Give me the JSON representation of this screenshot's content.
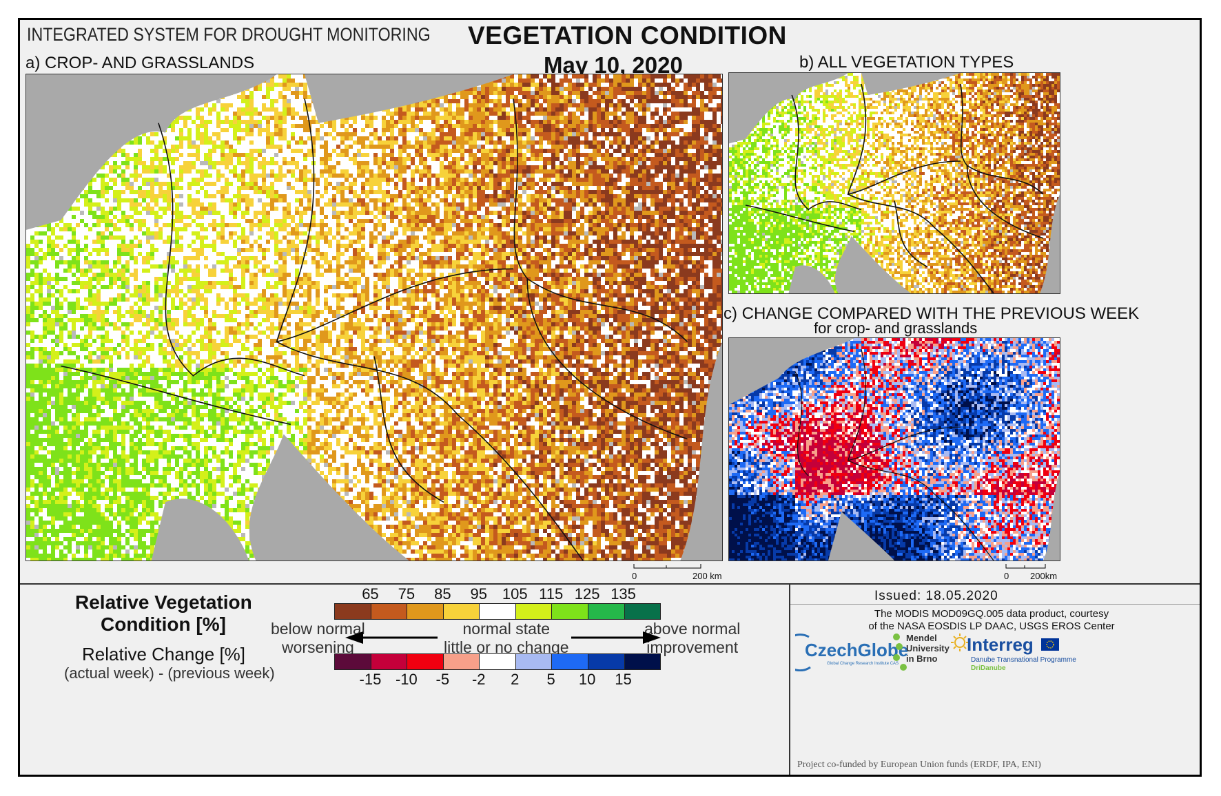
{
  "header": {
    "system": "INTEGRATED SYSTEM FOR DROUGHT MONITORING",
    "title": "VEGETATION CONDITION",
    "date": "May 10, 2020"
  },
  "panels": {
    "a": {
      "label": "a) CROP- AND GRASSLANDS",
      "scale": [
        "0",
        "200 km"
      ]
    },
    "b": {
      "label": "b) ALL VEGETATION TYPES"
    },
    "c": {
      "label": "c) CHANGE COMPARED WITH THE PREVIOUS WEEK",
      "sublabel": "for crop- and grasslands",
      "scale": [
        "0",
        "200km"
      ]
    }
  },
  "legend": {
    "title_line1": "Relative Vegetation",
    "title_line2": "Condition [%]",
    "change_title": "Relative Change [%]",
    "change_sub": "(actual week) - (previous week)",
    "condition_ticks": [
      "65",
      "75",
      "85",
      "95",
      "105",
      "115",
      "125",
      "135"
    ],
    "condition_colors": [
      "#8b3a1e",
      "#c45a1e",
      "#e0981c",
      "#f7d23a",
      "#ffffff",
      "#d4f01a",
      "#7ee21a",
      "#25b84a",
      "#08714a"
    ],
    "change_ticks": [
      "-15",
      "-10",
      "-5",
      "-2",
      "2",
      "5",
      "10",
      "15"
    ],
    "change_colors": [
      "#5c0a3a",
      "#c4003a",
      "#f00010",
      "#f7a08a",
      "#ffffff",
      "#a8baf2",
      "#1e6af5",
      "#073aa8",
      "#00104a"
    ],
    "left_line1": "below normal",
    "left_line2": "worsening",
    "center_line1": "normal state",
    "center_line2": "little or no change",
    "right_line1": "above normal",
    "right_line2": "improvement"
  },
  "footer": {
    "issued": "Issued: 18.05.2020",
    "credit_line1": "The MODIS MOD09GQ.005 data product, courtesy",
    "credit_line2": "of the NASA EOSDIS LP DAAC, USGS EROS Center",
    "logo_czechglobe": "CzechGlobe",
    "logo_czechglobe_sub": "Global Change Research Institute CAS",
    "logo_mendel": [
      "Mendel",
      "University",
      "in Brno"
    ],
    "logo_interreg": "Interreg",
    "logo_interreg_sub1": "Danube Transnational Programme",
    "logo_interreg_sub2": "DriDanube",
    "funded": "Project co-funded by European Union funds (ERDF, IPA, ENI)"
  },
  "colors": {
    "sea": "#a9a9a9",
    "border": "#111111"
  }
}
